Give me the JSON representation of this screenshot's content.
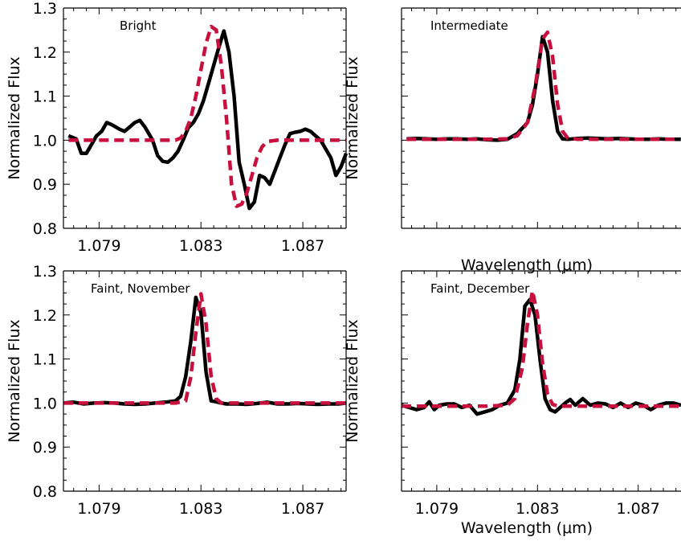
{
  "chart_data": [
    {
      "type": "line",
      "title": "Bright",
      "xlabel": "",
      "ylabel": "Normalized Flux",
      "xlim": [
        1.0776,
        1.0887
      ],
      "ylim": [
        0.8,
        1.3
      ],
      "xticks": [
        "1.079",
        "1.083",
        "1.087"
      ],
      "yticks": [
        "0.8",
        "0.9",
        "1.0",
        "1.1",
        "1.2",
        "1.3"
      ],
      "series": [
        {
          "color": "#000000",
          "style": "solid",
          "x": [
            1.0778,
            1.0781,
            1.0783,
            1.0785,
            1.0787,
            1.0789,
            1.0791,
            1.0793,
            1.0795,
            1.0798,
            1.08,
            1.0802,
            1.0804,
            1.0806,
            1.0808,
            1.0811,
            1.0813,
            1.0815,
            1.0817,
            1.0819,
            1.0821,
            1.0823,
            1.0825,
            1.0827,
            1.0829,
            1.0831,
            1.0833,
            1.0835,
            1.0837,
            1.0839,
            1.0841,
            1.0843,
            1.0845,
            1.0847,
            1.0849,
            1.0851,
            1.0853,
            1.0855,
            1.0857,
            1.0859,
            1.0861,
            1.0863,
            1.0865,
            1.0867,
            1.0869,
            1.0871,
            1.0873,
            1.0875,
            1.0877,
            1.0879,
            1.0881,
            1.0883,
            1.0885,
            1.0887
          ],
          "y": [
            1.01,
            1.003,
            0.97,
            0.97,
            0.99,
            1.01,
            1.02,
            1.04,
            1.035,
            1.025,
            1.02,
            1.03,
            1.04,
            1.045,
            1.03,
            1.0,
            0.965,
            0.952,
            0.95,
            0.96,
            0.975,
            1.0,
            1.028,
            1.04,
            1.06,
            1.09,
            1.13,
            1.17,
            1.21,
            1.248,
            1.2,
            1.1,
            0.95,
            0.9,
            0.845,
            0.86,
            0.92,
            0.915,
            0.9,
            0.93,
            0.96,
            0.99,
            1.015,
            1.018,
            1.02,
            1.025,
            1.02,
            1.01,
            1.0,
            0.98,
            0.96,
            0.92,
            0.94,
            0.97
          ]
        },
        {
          "color": "#c8103e",
          "style": "dashed",
          "x": [
            1.0778,
            1.079,
            1.08,
            1.081,
            1.082,
            1.0822,
            1.0824,
            1.0826,
            1.0828,
            1.083,
            1.0832,
            1.0834,
            1.0836,
            1.0838,
            1.084,
            1.0842,
            1.0844,
            1.0846,
            1.0848,
            1.085,
            1.0852,
            1.0854,
            1.0856,
            1.086,
            1.087,
            1.088,
            1.0887
          ],
          "y": [
            1.0,
            1.0,
            1.0,
            1.0,
            1.0,
            1.005,
            1.02,
            1.05,
            1.1,
            1.16,
            1.22,
            1.258,
            1.25,
            1.17,
            1.05,
            0.9,
            0.85,
            0.855,
            0.88,
            0.92,
            0.96,
            0.985,
            0.997,
            1.0,
            1.0,
            1.0,
            1.0
          ]
        }
      ]
    },
    {
      "type": "line",
      "title": "Intermediate",
      "xlabel": "Wavelength (μm)",
      "ylabel": "Normalized Flux",
      "xlim": [
        1.0776,
        1.0887
      ],
      "ylim": [
        0.8,
        1.3
      ],
      "xticks": [],
      "yticks": [],
      "series": [
        {
          "color": "#000000",
          "style": "solid",
          "x": [
            1.0778,
            1.0782,
            1.0786,
            1.079,
            1.0794,
            1.0798,
            1.0802,
            1.0806,
            1.081,
            1.0814,
            1.0818,
            1.0822,
            1.0826,
            1.0828,
            1.083,
            1.0832,
            1.0834,
            1.0836,
            1.0838,
            1.084,
            1.0842,
            1.0844,
            1.0846,
            1.085,
            1.0854,
            1.0858,
            1.0862,
            1.0866,
            1.087,
            1.0874,
            1.0878,
            1.0882,
            1.0887
          ],
          "y": [
            1.003,
            1.004,
            1.003,
            1.002,
            1.003,
            1.003,
            1.002,
            1.003,
            1.001,
            1.0,
            1.002,
            1.015,
            1.04,
            1.08,
            1.15,
            1.235,
            1.2,
            1.09,
            1.02,
            1.003,
            1.002,
            1.003,
            1.004,
            1.005,
            1.004,
            1.003,
            1.004,
            1.003,
            1.002,
            1.002,
            1.003,
            1.002,
            1.002
          ]
        },
        {
          "color": "#c8103e",
          "style": "dashed",
          "x": [
            1.0778,
            1.079,
            1.08,
            1.081,
            1.0818,
            1.0822,
            1.0826,
            1.0829,
            1.0832,
            1.0834,
            1.0836,
            1.0838,
            1.084,
            1.0842,
            1.0846,
            1.085,
            1.086,
            1.087,
            1.088,
            1.0887
          ],
          "y": [
            1.002,
            1.002,
            1.002,
            1.002,
            1.003,
            1.01,
            1.04,
            1.12,
            1.23,
            1.245,
            1.19,
            1.08,
            1.02,
            1.005,
            1.002,
            1.002,
            1.002,
            1.002,
            1.002,
            1.002
          ]
        }
      ]
    },
    {
      "type": "line",
      "title": "Faint, November",
      "xlabel": "",
      "ylabel": "Normalized Flux",
      "xlim": [
        1.0776,
        1.0887
      ],
      "ylim": [
        0.8,
        1.3
      ],
      "xticks": [
        "1.079",
        "1.083",
        "1.087"
      ],
      "yticks": [
        "0.8",
        "0.9",
        "1.0",
        "1.1",
        "1.2",
        "1.3"
      ],
      "series": [
        {
          "color": "#000000",
          "style": "solid",
          "x": [
            1.0776,
            1.078,
            1.0784,
            1.0788,
            1.0792,
            1.0796,
            1.08,
            1.0804,
            1.0808,
            1.0812,
            1.0816,
            1.082,
            1.0822,
            1.0824,
            1.0826,
            1.0828,
            1.083,
            1.0832,
            1.0834,
            1.0836,
            1.0838,
            1.084,
            1.0844,
            1.0848,
            1.0852,
            1.0856,
            1.086,
            1.0864,
            1.0868,
            1.0872,
            1.0876,
            1.088,
            1.0884,
            1.0887
          ],
          "y": [
            1.0,
            1.002,
            0.998,
            1.0,
            1.001,
            1.0,
            0.998,
            0.997,
            0.998,
            1.0,
            1.002,
            1.005,
            1.015,
            1.06,
            1.14,
            1.24,
            1.205,
            1.07,
            1.005,
            1.003,
            1.0,
            0.998,
            0.998,
            0.997,
            0.999,
            1.002,
            0.998,
            0.998,
            0.999,
            0.998,
            0.997,
            0.998,
            0.998,
            1.0
          ]
        },
        {
          "color": "#c8103e",
          "style": "dashed",
          "x": [
            1.0776,
            1.079,
            1.08,
            1.081,
            1.082,
            1.0824,
            1.0826,
            1.0828,
            1.083,
            1.0832,
            1.0834,
            1.0836,
            1.0838,
            1.084,
            1.0844,
            1.085,
            1.086,
            1.087,
            1.088,
            1.0887
          ],
          "y": [
            1.0,
            1.0,
            1.0,
            1.0,
            1.0,
            1.005,
            1.06,
            1.16,
            1.248,
            1.18,
            1.06,
            1.01,
            1.0,
            1.0,
            1.0,
            1.0,
            1.0,
            1.0,
            1.0,
            1.0
          ]
        }
      ]
    },
    {
      "type": "line",
      "title": "Faint, December",
      "xlabel": "Wavelength (μm)",
      "ylabel": "Normalized Flux",
      "xlim": [
        1.0776,
        1.0887
      ],
      "ylim": [
        0.8,
        1.3
      ],
      "xticks": [
        "1.079",
        "1.083",
        "1.087"
      ],
      "yticks": [],
      "series": [
        {
          "color": "#000000",
          "style": "solid",
          "x": [
            1.0776,
            1.0779,
            1.0782,
            1.0785,
            1.0787,
            1.0789,
            1.0791,
            1.0794,
            1.0797,
            1.08,
            1.0803,
            1.0806,
            1.0809,
            1.0812,
            1.0815,
            1.0818,
            1.0821,
            1.0823,
            1.0825,
            1.0827,
            1.0829,
            1.0831,
            1.0833,
            1.0835,
            1.0837,
            1.0839,
            1.0841,
            1.0843,
            1.0845,
            1.0848,
            1.0851,
            1.0854,
            1.0857,
            1.086,
            1.0863,
            1.0866,
            1.0869,
            1.0872,
            1.0875,
            1.0878,
            1.0881,
            1.0884,
            1.0887
          ],
          "y": [
            0.995,
            0.99,
            0.985,
            0.99,
            1.003,
            0.985,
            0.995,
            0.998,
            0.998,
            0.99,
            0.995,
            0.975,
            0.98,
            0.985,
            0.995,
            1.0,
            1.03,
            1.1,
            1.22,
            1.235,
            1.2,
            1.1,
            1.01,
            0.985,
            0.98,
            0.99,
            1.0,
            1.008,
            0.995,
            1.01,
            0.995,
            1.0,
            0.998,
            0.99,
            1.0,
            0.99,
            1.0,
            0.995,
            0.985,
            0.995,
            1.0,
            1.0,
            0.995
          ]
        },
        {
          "color": "#c8103e",
          "style": "dashed",
          "x": [
            1.0776,
            1.079,
            1.08,
            1.081,
            1.0818,
            1.0821,
            1.0824,
            1.0826,
            1.0828,
            1.083,
            1.0832,
            1.0834,
            1.0836,
            1.0838,
            1.084,
            1.0844,
            1.085,
            1.086,
            1.087,
            1.088,
            1.0887
          ],
          "y": [
            0.993,
            0.993,
            0.993,
            0.993,
            0.995,
            1.01,
            1.08,
            1.18,
            1.255,
            1.2,
            1.09,
            1.02,
            0.997,
            0.993,
            0.993,
            0.993,
            0.993,
            0.993,
            0.993,
            0.993,
            0.993
          ]
        }
      ]
    }
  ]
}
